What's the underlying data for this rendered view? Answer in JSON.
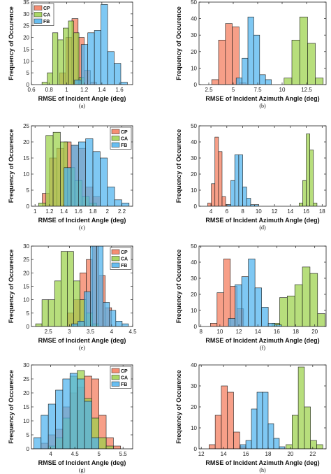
{
  "colors": {
    "CP": "#f47a5a",
    "CA": "#9bd14a",
    "FB": "#4db3ee"
  },
  "chart_data": [
    {
      "type": "histogram",
      "caption": "(a)",
      "xlabel": "RMSE of Incident Angle",
      "unit_suffix": " (deg)",
      "ylabel": "Frequency of Occurence",
      "xlim": [
        0.6,
        1.75
      ],
      "ylim": [
        0,
        35
      ],
      "xticks": [
        0.6,
        0.8,
        1,
        1.2,
        1.4,
        1.6
      ],
      "yticks": [
        0,
        5,
        10,
        15,
        20,
        25,
        30,
        35
      ],
      "legend": "top-left",
      "series": [
        {
          "name": "CP",
          "bin_width": 0.07,
          "bins": [
            [
              0.92,
              5
            ],
            [
              0.99,
              20
            ],
            [
              1.06,
              28
            ],
            [
              1.13,
              20
            ],
            [
              1.2,
              6
            ],
            [
              1.27,
              1
            ]
          ]
        },
        {
          "name": "CA",
          "bin_width": 0.06,
          "bins": [
            [
              0.72,
              1
            ],
            [
              0.78,
              5
            ],
            [
              0.84,
              22
            ],
            [
              0.9,
              19
            ],
            [
              0.96,
              24
            ],
            [
              1.02,
              27
            ],
            [
              1.08,
              22
            ],
            [
              1.14,
              3
            ]
          ]
        },
        {
          "name": "FB",
          "bin_width": 0.075,
          "bins": [
            [
              1.09,
              2
            ],
            [
              1.165,
              17
            ],
            [
              1.24,
              22
            ],
            [
              1.315,
              23
            ],
            [
              1.39,
              34
            ],
            [
              1.465,
              14
            ],
            [
              1.54,
              9
            ],
            [
              1.615,
              1
            ]
          ]
        }
      ]
    },
    {
      "type": "histogram",
      "caption": "(b)",
      "xlabel": "RMSE of Incident Azimuth Angle",
      "unit_suffix": " (deg)",
      "ylabel": "Frequency of Occurence",
      "xlim": [
        1.5,
        14.5
      ],
      "ylim": [
        0,
        50
      ],
      "xticks": [
        2.5,
        5,
        7.5,
        10,
        12.5
      ],
      "xticklabels": [
        "2.5",
        "5",
        "7.5",
        "10",
        "12.5"
      ],
      "yticks": [
        0,
        10,
        20,
        30,
        40,
        50
      ],
      "legend": "none",
      "series": [
        {
          "name": "CP",
          "bin_width": 0.7,
          "bins": [
            [
              2.8,
              3
            ],
            [
              3.5,
              27
            ],
            [
              4.2,
              37
            ],
            [
              4.9,
              35
            ],
            [
              5.6,
              1
            ]
          ]
        },
        {
          "name": "CA",
          "bin_width": 0.8,
          "bins": [
            [
              10.2,
              4
            ],
            [
              11.0,
              27
            ],
            [
              11.8,
              41
            ],
            [
              12.6,
              25
            ],
            [
              13.4,
              4
            ]
          ]
        },
        {
          "name": "FB",
          "bin_width": 0.6,
          "bins": [
            [
              5.3,
              4
            ],
            [
              5.9,
              16
            ],
            [
              6.5,
              41
            ],
            [
              7.1,
              30
            ],
            [
              7.7,
              6
            ],
            [
              8.3,
              3
            ]
          ]
        }
      ]
    },
    {
      "type": "histogram",
      "caption": "(c)",
      "xlabel": "RMSE of Incident Angle",
      "unit_suffix": " (deg)",
      "ylabel": "Frequency of Occurence",
      "xlim": [
        0.95,
        2.35
      ],
      "ylim": [
        0,
        25
      ],
      "xticks": [
        1,
        1.2,
        1.4,
        1.6,
        1.8,
        2,
        2.2
      ],
      "yticks": [
        0,
        5,
        10,
        15,
        20,
        25
      ],
      "legend": "top-right",
      "series": [
        {
          "name": "CP",
          "bin_width": 0.1,
          "bins": [
            [
              1.1,
              4
            ],
            [
              1.2,
              15
            ],
            [
              1.3,
              18
            ],
            [
              1.4,
              20
            ],
            [
              1.5,
              19
            ],
            [
              1.6,
              18
            ],
            [
              1.7,
              6
            ],
            [
              1.8,
              3
            ]
          ]
        },
        {
          "name": "CA",
          "bin_width": 0.1,
          "bins": [
            [
              1.05,
              1
            ],
            [
              1.15,
              22
            ],
            [
              1.25,
              23
            ],
            [
              1.35,
              20
            ],
            [
              1.45,
              12
            ],
            [
              1.55,
              8
            ],
            [
              1.65,
              3
            ],
            [
              1.75,
              1
            ]
          ]
        },
        {
          "name": "FB",
          "bin_width": 0.1,
          "bins": [
            [
              1.4,
              12
            ],
            [
              1.5,
              19
            ],
            [
              1.6,
              20
            ],
            [
              1.7,
              21
            ],
            [
              1.8,
              17
            ],
            [
              1.9,
              15
            ],
            [
              2.0,
              6
            ],
            [
              2.1,
              2
            ],
            [
              2.2,
              1
            ]
          ]
        }
      ]
    },
    {
      "type": "histogram",
      "caption": "(d)",
      "xlabel": "RMSE of Incident Azimuth Angle",
      "unit_suffix": " (deg)",
      "ylabel": "Frequency of Occurence",
      "xlim": [
        2.5,
        18.5
      ],
      "ylim": [
        0,
        50
      ],
      "xticks": [
        4,
        6,
        8,
        10,
        12,
        14,
        16,
        18
      ],
      "yticks": [
        0,
        10,
        20,
        30,
        40,
        50
      ],
      "legend": "none",
      "series": [
        {
          "name": "CP",
          "bin_width": 0.45,
          "bins": [
            [
              3.6,
              2
            ],
            [
              4.05,
              14
            ],
            [
              4.5,
              43
            ],
            [
              4.95,
              34
            ],
            [
              5.4,
              6
            ],
            [
              5.85,
              1
            ]
          ]
        },
        {
          "name": "CA",
          "bin_width": 0.45,
          "bins": [
            [
              15.1,
              2
            ],
            [
              15.55,
              16
            ],
            [
              16.0,
              45
            ],
            [
              16.45,
              35
            ],
            [
              16.9,
              2
            ]
          ]
        },
        {
          "name": "FB",
          "bin_width": 0.5,
          "bins": [
            [
              6.0,
              1
            ],
            [
              6.5,
              16
            ],
            [
              7.0,
              32
            ],
            [
              7.5,
              32
            ],
            [
              8.0,
              12
            ],
            [
              8.5,
              5
            ],
            [
              9.0,
              1
            ],
            [
              9.5,
              1
            ]
          ]
        }
      ]
    },
    {
      "type": "histogram",
      "caption": "(e)",
      "xlabel": "RMSE of Incident Angle",
      "unit_suffix": " (deg)",
      "ylabel": "Frequency of Occurence",
      "xlim": [
        2.1,
        4.5
      ],
      "ylim": [
        0,
        30
      ],
      "xticks": [
        2.5,
        3,
        3.5,
        4,
        4.5
      ],
      "yticks": [
        0,
        5,
        10,
        15,
        20,
        25,
        30
      ],
      "legend": "top-right",
      "series": [
        {
          "name": "CP",
          "bin_width": 0.15,
          "bins": [
            [
              2.95,
              5
            ],
            [
              3.1,
              10
            ],
            [
              3.25,
              20
            ],
            [
              3.4,
              25
            ],
            [
              3.55,
              30
            ],
            [
              3.7,
              19
            ],
            [
              3.85,
              7
            ]
          ]
        },
        {
          "name": "CA",
          "bin_width": 0.15,
          "bins": [
            [
              2.2,
              1
            ],
            [
              2.35,
              10
            ],
            [
              2.5,
              10
            ],
            [
              2.65,
              17
            ],
            [
              2.8,
              28
            ],
            [
              2.95,
              28
            ],
            [
              3.1,
              17
            ],
            [
              3.25,
              10
            ],
            [
              3.4,
              5
            ],
            [
              3.55,
              1
            ]
          ]
        },
        {
          "name": "FB",
          "bin_width": 0.15,
          "bins": [
            [
              3.05,
              1
            ],
            [
              3.2,
              2
            ],
            [
              3.35,
              13
            ],
            [
              3.5,
              30
            ],
            [
              3.65,
              30
            ],
            [
              3.8,
              9
            ],
            [
              3.95,
              6
            ],
            [
              4.1,
              2
            ],
            [
              4.25,
              1
            ]
          ]
        }
      ]
    },
    {
      "type": "histogram",
      "caption": "(f)",
      "xlabel": "RMSE of Incident Azimuth Angle",
      "unit_suffix": " (deg)",
      "ylabel": "Frequency of Occurence",
      "xlim": [
        7.8,
        21.2
      ],
      "ylim": [
        0,
        50
      ],
      "xticks": [
        8,
        10,
        12,
        14,
        16,
        18,
        20
      ],
      "yticks": [
        0,
        10,
        20,
        30,
        40,
        50
      ],
      "legend": "none",
      "series": [
        {
          "name": "CP",
          "bin_width": 0.7,
          "bins": [
            [
              9.0,
              2
            ],
            [
              9.7,
              21
            ],
            [
              10.4,
              42
            ],
            [
              11.1,
              25
            ],
            [
              11.8,
              11
            ]
          ]
        },
        {
          "name": "CA",
          "bin_width": 0.8,
          "bins": [
            [
              15.5,
              2
            ],
            [
              16.3,
              18
            ],
            [
              17.1,
              19
            ],
            [
              17.9,
              26
            ],
            [
              18.7,
              37
            ],
            [
              19.5,
              33
            ],
            [
              20.3,
              8
            ]
          ]
        },
        {
          "name": "FB",
          "bin_width": 0.7,
          "bins": [
            [
              10.9,
              5
            ],
            [
              11.6,
              26
            ],
            [
              12.3,
              31
            ],
            [
              13.0,
              42
            ],
            [
              13.7,
              24
            ],
            [
              14.4,
              12
            ],
            [
              15.1,
              2
            ],
            [
              15.8,
              1
            ]
          ]
        }
      ]
    },
    {
      "type": "histogram",
      "caption": "(g)",
      "xlabel": "RMSE of Incident Angle",
      "unit_suffix": " (deg)",
      "ylabel": "Frequency of Occurence",
      "xlim": [
        3.6,
        5.7
      ],
      "ylim": [
        0,
        30
      ],
      "xticks": [
        4,
        4.5,
        5,
        5.5
      ],
      "yticks": [
        0,
        5,
        10,
        15,
        20,
        25,
        30
      ],
      "legend": "top-right",
      "series": [
        {
          "name": "CP",
          "bin_width": 0.15,
          "bins": [
            [
              3.8,
              2
            ],
            [
              3.95,
              5
            ],
            [
              4.1,
              7
            ],
            [
              4.25,
              15
            ],
            [
              4.4,
              20
            ],
            [
              4.55,
              22
            ],
            [
              4.7,
              26
            ],
            [
              4.85,
              25
            ],
            [
              5.0,
              12
            ],
            [
              5.15,
              4
            ],
            [
              5.3,
              1
            ]
          ]
        },
        {
          "name": "CA",
          "bin_width": 0.15,
          "bins": [
            [
              3.95,
              1
            ],
            [
              4.1,
              4
            ],
            [
              4.25,
              11
            ],
            [
              4.4,
              26
            ],
            [
              4.55,
              28
            ],
            [
              4.7,
              18
            ],
            [
              4.85,
              11
            ],
            [
              5.0,
              4
            ],
            [
              5.15,
              1
            ]
          ]
        },
        {
          "name": "FB",
          "bin_width": 0.15,
          "bins": [
            [
              3.65,
              4
            ],
            [
              3.8,
              12
            ],
            [
              3.95,
              16
            ],
            [
              4.1,
              21
            ],
            [
              4.25,
              25
            ],
            [
              4.4,
              27
            ],
            [
              4.55,
              25
            ],
            [
              4.7,
              17
            ],
            [
              4.85,
              4
            ]
          ]
        }
      ]
    },
    {
      "type": "histogram",
      "caption": "(h)",
      "xlabel": "RMSE of Incident Azimuth Angle",
      "unit_suffix": " (deg)",
      "ylabel": "Frequency of Occurence",
      "xlim": [
        11.8,
        23.2
      ],
      "ylim": [
        0,
        40
      ],
      "xticks": [
        12,
        14,
        16,
        18,
        20,
        22
      ],
      "yticks": [
        0,
        10,
        20,
        30,
        40
      ],
      "legend": "none",
      "series": [
        {
          "name": "CP",
          "bin_width": 0.55,
          "bins": [
            [
              12.7,
              2
            ],
            [
              13.25,
              16
            ],
            [
              13.8,
              30
            ],
            [
              14.35,
              27
            ],
            [
              14.9,
              8
            ],
            [
              15.45,
              1
            ]
          ]
        },
        {
          "name": "CA",
          "bin_width": 0.55,
          "bins": [
            [
              19.6,
              2
            ],
            [
              20.15,
              16
            ],
            [
              20.7,
              39
            ],
            [
              21.25,
              20
            ],
            [
              21.8,
              4
            ],
            [
              22.35,
              2
            ]
          ]
        },
        {
          "name": "FB",
          "bin_width": 0.5,
          "bins": [
            [
              15.5,
              2
            ],
            [
              16.0,
              4
            ],
            [
              16.5,
              19
            ],
            [
              17.0,
              27
            ],
            [
              17.5,
              27
            ],
            [
              18.0,
              12
            ],
            [
              18.5,
              5
            ],
            [
              19.0,
              1
            ]
          ]
        }
      ]
    }
  ]
}
